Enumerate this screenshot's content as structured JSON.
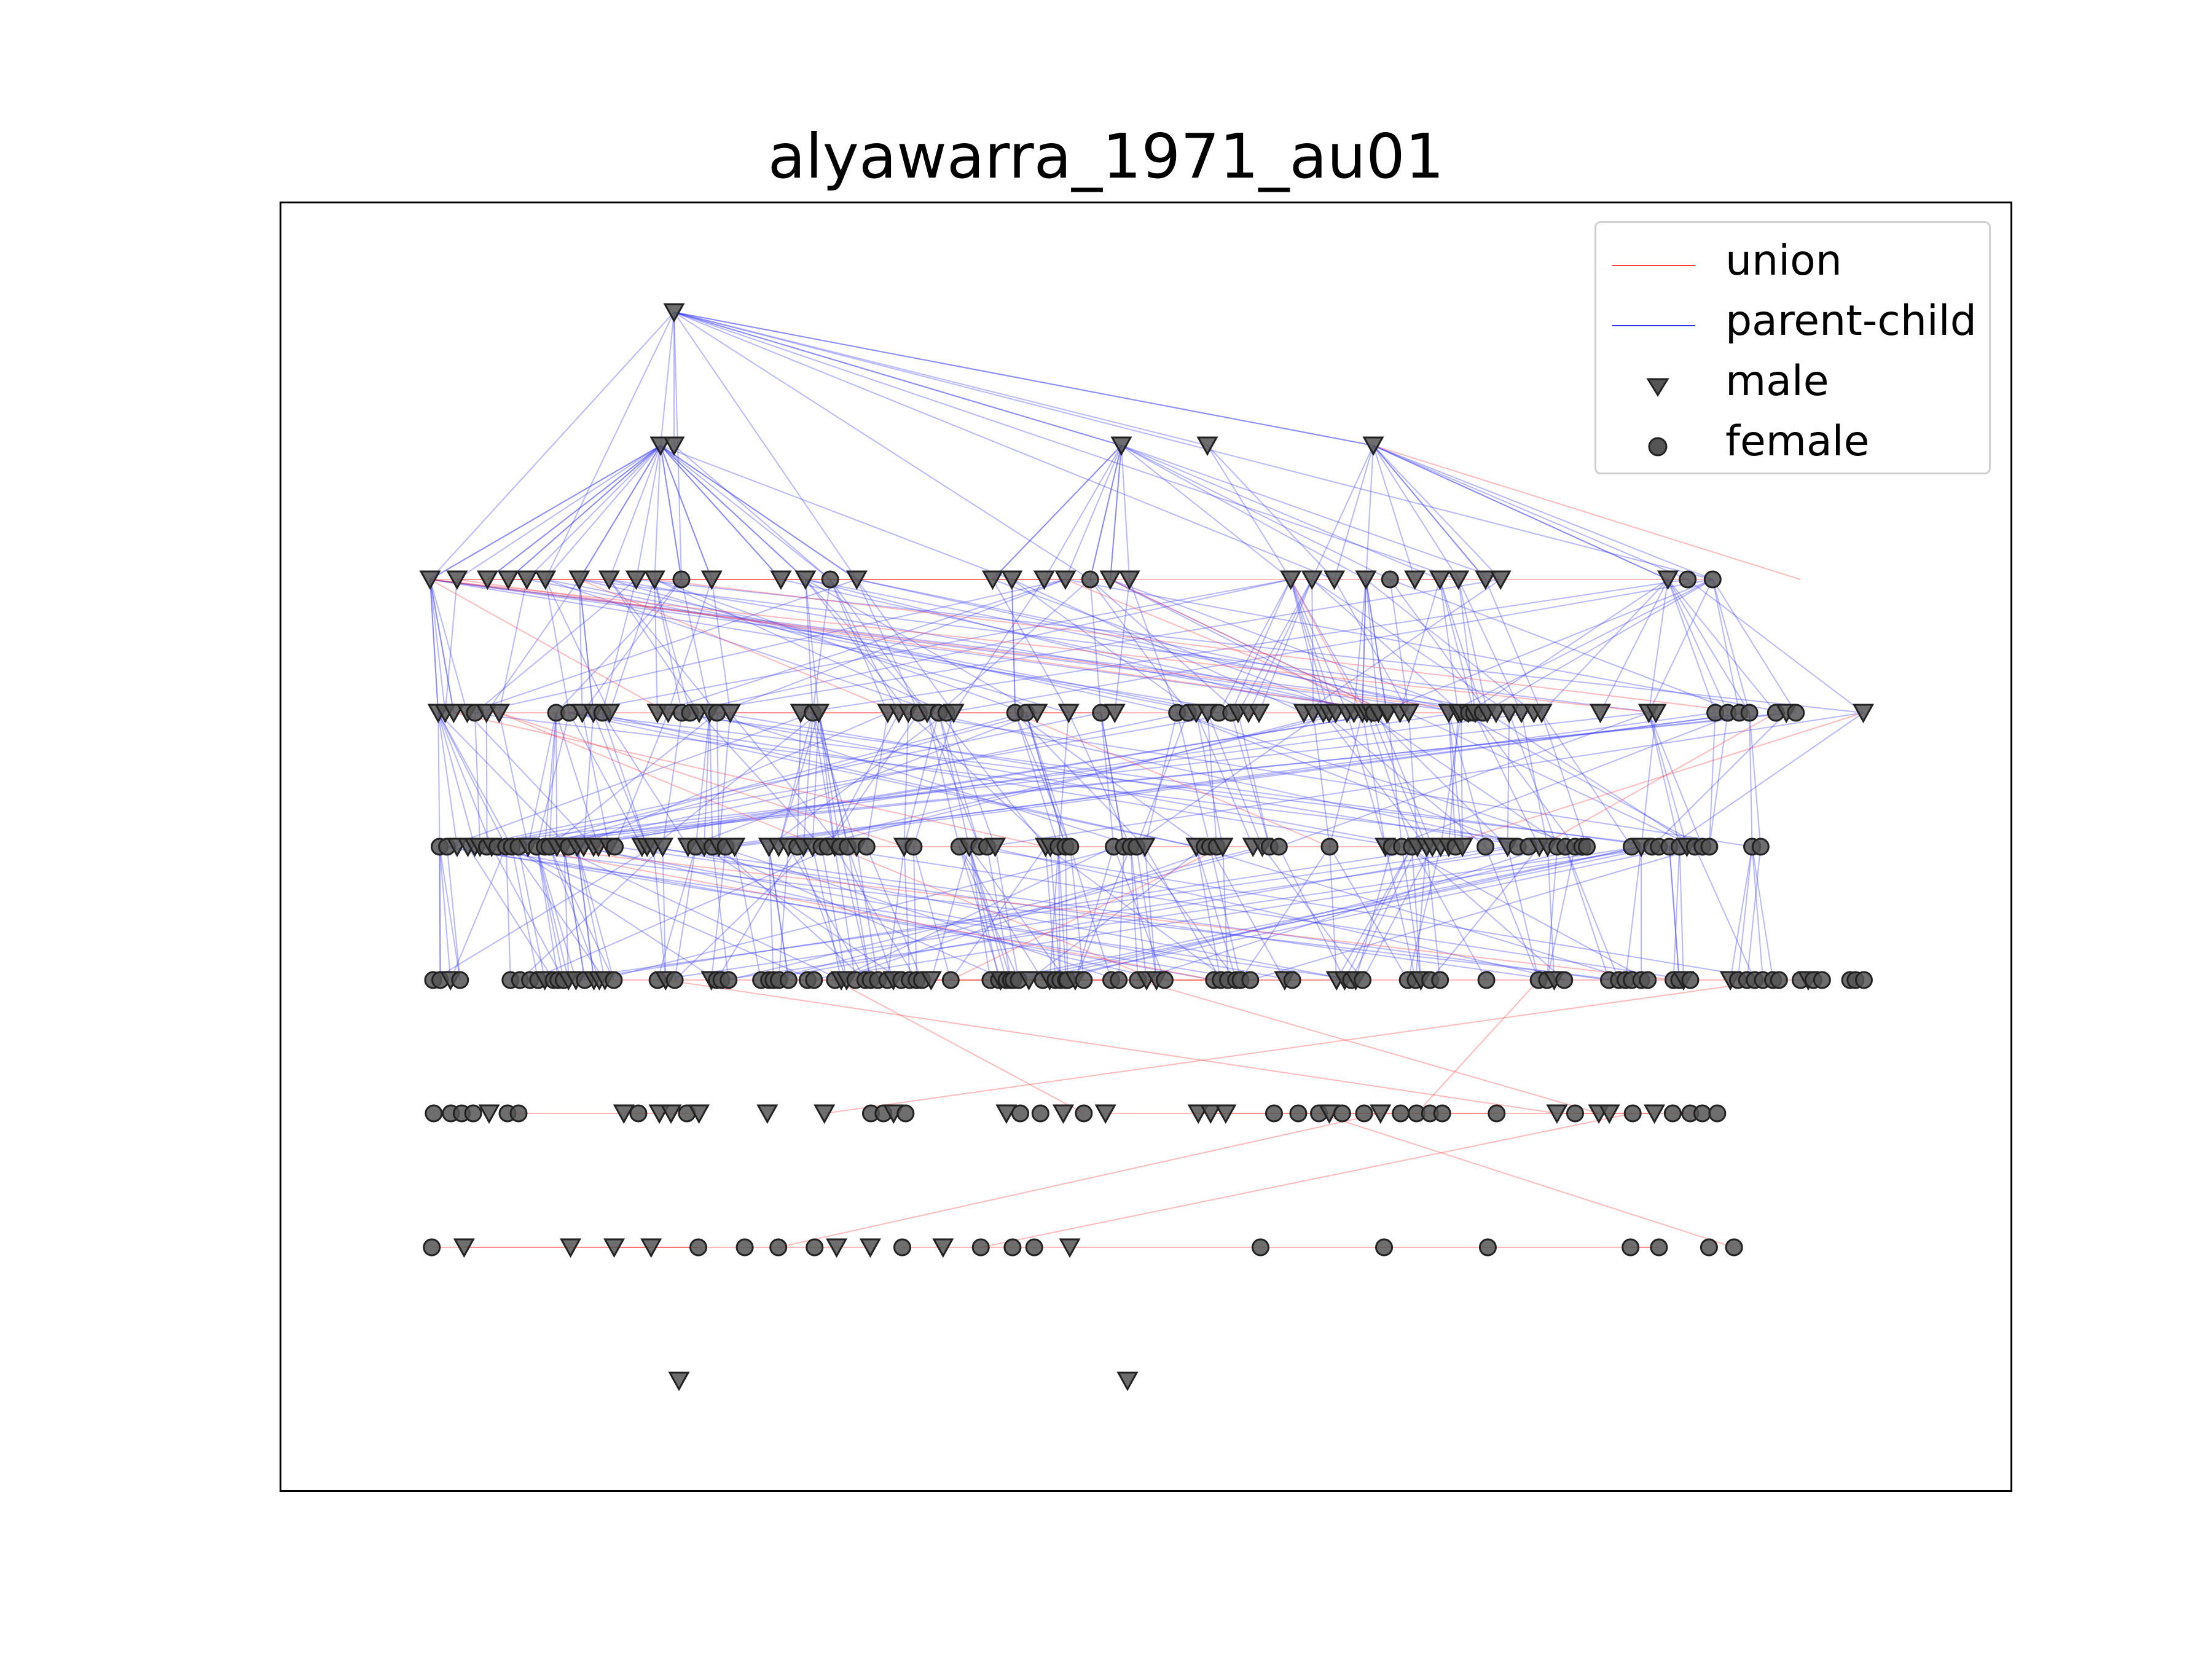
{
  "title": "alyawarra_1971_au01",
  "legend": {
    "union": "union",
    "parent_child": "parent-child",
    "male": "male",
    "female": "female"
  },
  "colors": {
    "union": "#ff3b3b",
    "parent_child": "#3333ff",
    "node_fill": "#555555",
    "node_edge": "#222222"
  },
  "icons": {
    "male": "down-triangle-marker",
    "female": "circle-marker"
  },
  "diagram": {
    "type": "genealogy-network",
    "generation_count": 9,
    "generations": [
      {
        "males": 1,
        "females": 0
      },
      {
        "males": 5,
        "females": 0
      },
      {
        "males": 30,
        "females": 6
      },
      {
        "males": 60,
        "females": 28
      },
      {
        "males": 50,
        "females": 60
      },
      {
        "males": 28,
        "females": 90
      },
      {
        "males": 20,
        "females": 30
      },
      {
        "males": 8,
        "females": 16
      },
      {
        "males": 2,
        "females": 0
      }
    ],
    "edge_counts": {
      "union": 50,
      "parent_child": 520
    }
  }
}
